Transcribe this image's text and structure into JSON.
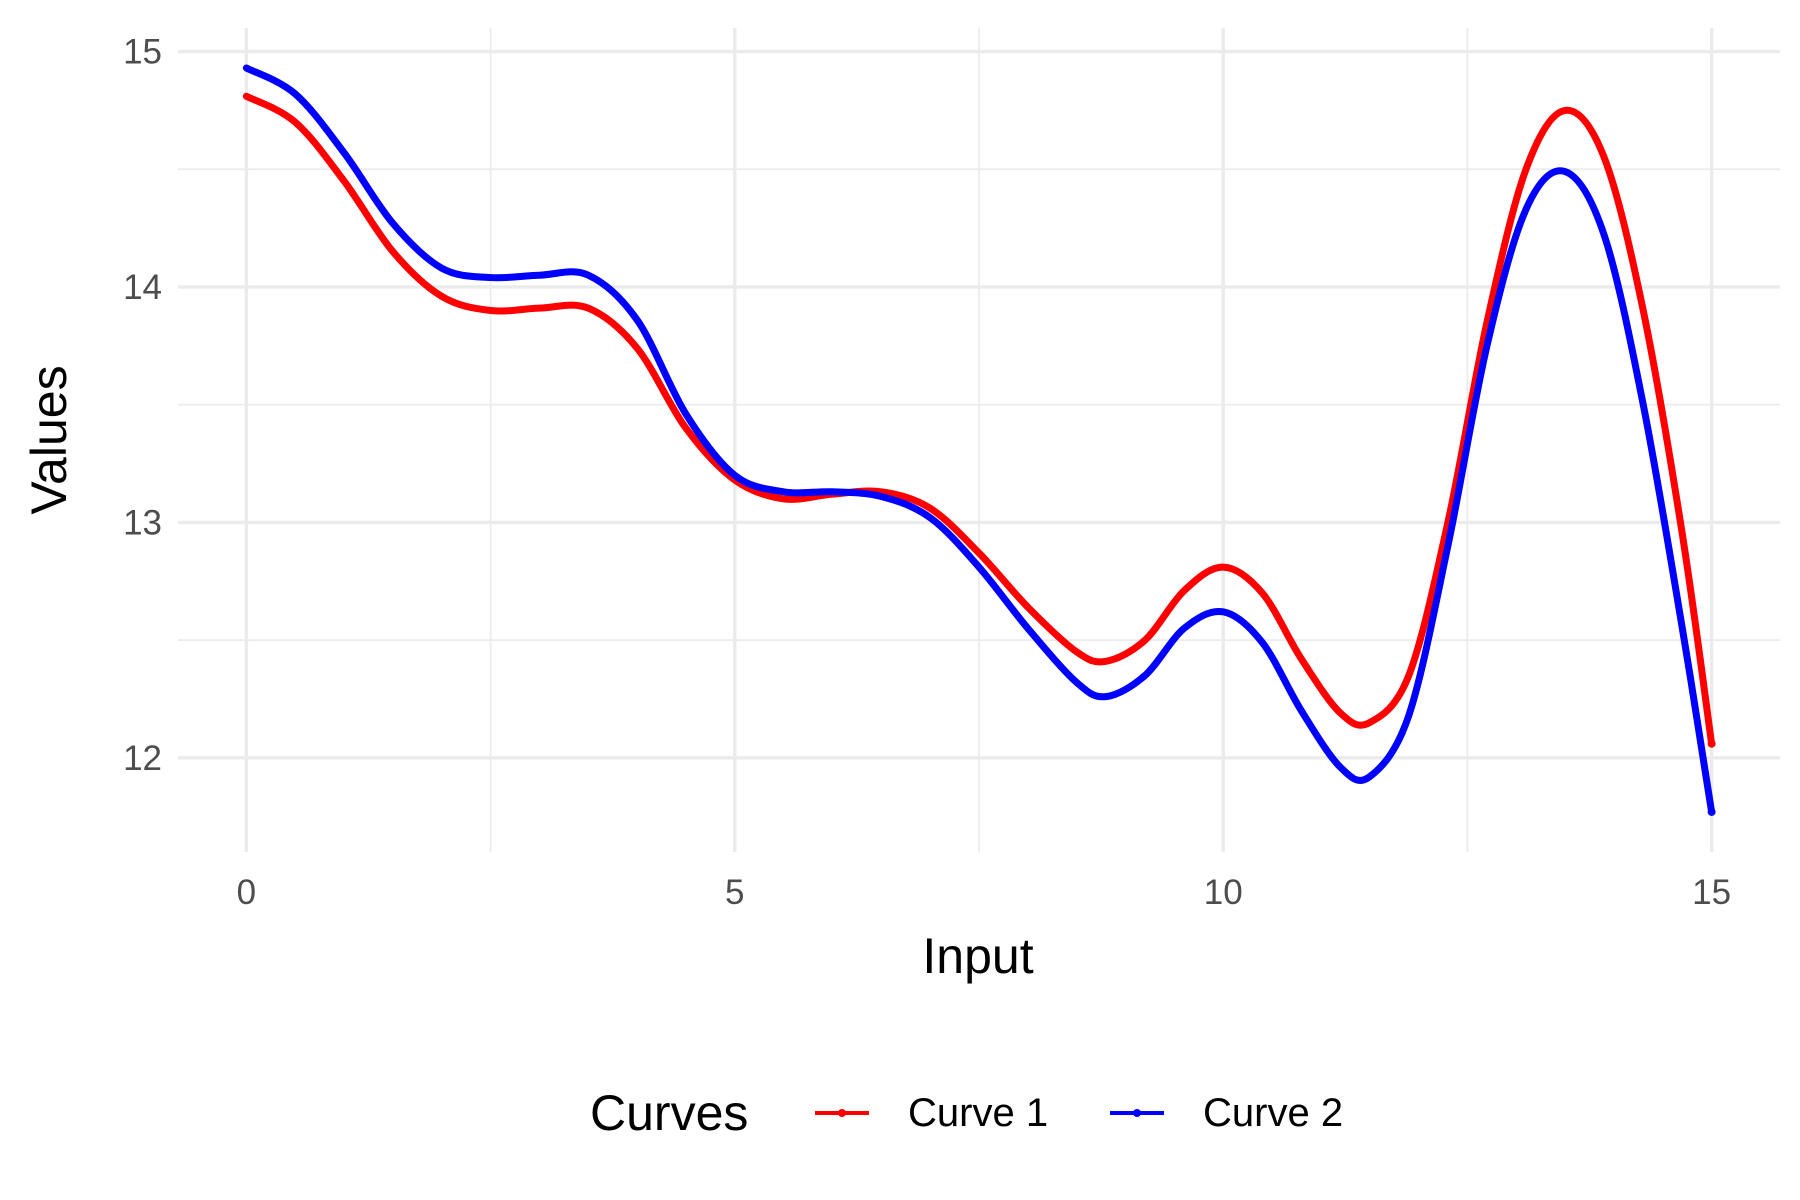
{
  "chart_data": {
    "type": "line",
    "title": "",
    "xlabel": "Input",
    "ylabel": "Values",
    "xlim": [
      -0.7,
      15.7
    ],
    "ylim": [
      11.6,
      15.1
    ],
    "x_ticks": [
      0,
      5,
      10,
      15
    ],
    "x_tick_labels": [
      "0",
      "5",
      "10",
      "15"
    ],
    "y_ticks": [
      12,
      13,
      14,
      15
    ],
    "y_tick_labels": [
      "12",
      "13",
      "14",
      "15"
    ],
    "grid": true,
    "legend": {
      "title": "Curves",
      "position": "bottom"
    },
    "series": [
      {
        "name": "Curve 1",
        "color": "#ff0000",
        "points": [
          [
            0,
            14.81
          ],
          [
            0.5,
            14.7
          ],
          [
            1,
            14.45
          ],
          [
            1.5,
            14.15
          ],
          [
            2,
            13.96
          ],
          [
            2.5,
            13.9
          ],
          [
            3,
            13.91
          ],
          [
            3.5,
            13.91
          ],
          [
            4,
            13.74
          ],
          [
            4.5,
            13.4
          ],
          [
            5,
            13.18
          ],
          [
            5.5,
            13.1
          ],
          [
            6,
            13.12
          ],
          [
            6.5,
            13.13
          ],
          [
            7,
            13.06
          ],
          [
            7.5,
            12.87
          ],
          [
            8,
            12.64
          ],
          [
            8.5,
            12.45
          ],
          [
            8.8,
            12.41
          ],
          [
            9.2,
            12.5
          ],
          [
            9.6,
            12.71
          ],
          [
            10,
            12.81
          ],
          [
            10.4,
            12.7
          ],
          [
            10.8,
            12.42
          ],
          [
            11.2,
            12.19
          ],
          [
            11.5,
            12.15
          ],
          [
            11.9,
            12.35
          ],
          [
            12.3,
            13.0
          ],
          [
            12.7,
            13.85
          ],
          [
            13.1,
            14.5
          ],
          [
            13.5,
            14.75
          ],
          [
            13.9,
            14.55
          ],
          [
            14.3,
            13.9
          ],
          [
            14.7,
            12.95
          ],
          [
            15,
            12.06
          ]
        ]
      },
      {
        "name": "Curve 2",
        "color": "#0000ff",
        "points": [
          [
            0,
            14.93
          ],
          [
            0.5,
            14.82
          ],
          [
            1,
            14.57
          ],
          [
            1.5,
            14.27
          ],
          [
            2,
            14.08
          ],
          [
            2.5,
            14.04
          ],
          [
            3,
            14.05
          ],
          [
            3.5,
            14.05
          ],
          [
            4,
            13.86
          ],
          [
            4.5,
            13.46
          ],
          [
            5,
            13.2
          ],
          [
            5.5,
            13.13
          ],
          [
            6,
            13.13
          ],
          [
            6.5,
            13.11
          ],
          [
            7,
            13.02
          ],
          [
            7.5,
            12.81
          ],
          [
            8,
            12.55
          ],
          [
            8.5,
            12.32
          ],
          [
            8.8,
            12.26
          ],
          [
            9.2,
            12.35
          ],
          [
            9.6,
            12.55
          ],
          [
            10,
            12.62
          ],
          [
            10.4,
            12.49
          ],
          [
            10.8,
            12.2
          ],
          [
            11.2,
            11.96
          ],
          [
            11.5,
            11.92
          ],
          [
            11.9,
            12.18
          ],
          [
            12.3,
            12.9
          ],
          [
            12.7,
            13.75
          ],
          [
            13.1,
            14.33
          ],
          [
            13.5,
            14.49
          ],
          [
            13.9,
            14.22
          ],
          [
            14.3,
            13.5
          ],
          [
            14.7,
            12.55
          ],
          [
            15,
            11.77
          ]
        ]
      }
    ]
  }
}
